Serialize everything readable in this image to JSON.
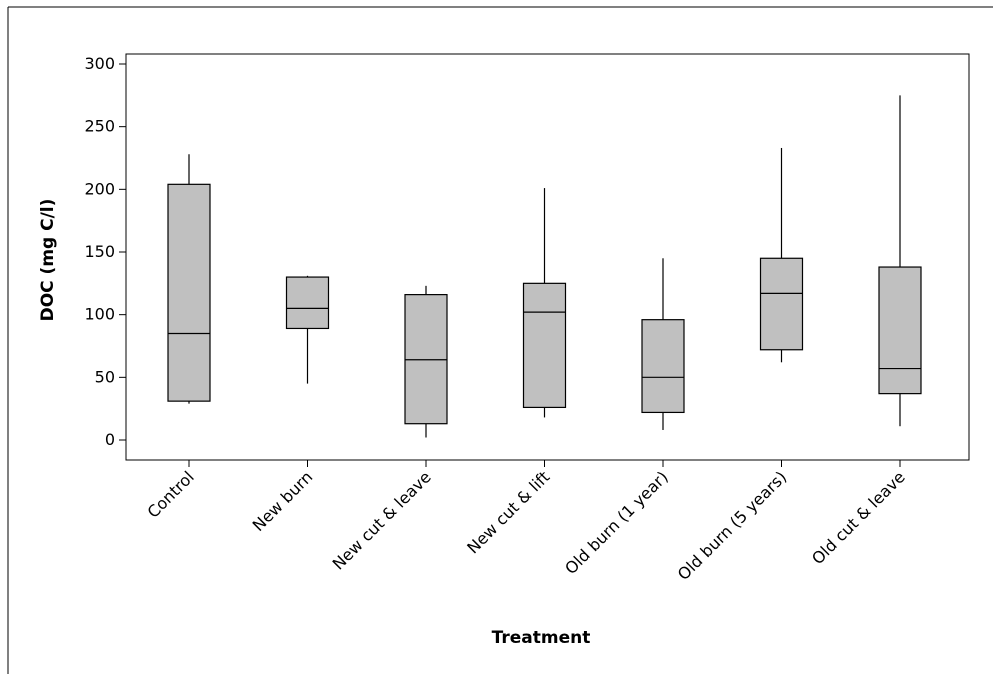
{
  "chart_data": {
    "type": "box",
    "title": "",
    "xlabel": "Treatment",
    "ylabel": "DOC (mg C/l)",
    "ylim": [
      -15,
      305
    ],
    "yticks": [
      0,
      50,
      100,
      150,
      200,
      250,
      300
    ],
    "grid": false,
    "legend": "none",
    "box_color": "#c0c0c0",
    "line_color": "#000000",
    "categories": [
      "Control",
      "New burn",
      "New cut & leave",
      "New cut & lift",
      "Old burn (1 year)",
      "Old burn (5 years)",
      "Old cut & leave"
    ],
    "boxes": [
      {
        "category": "Control",
        "min": 29,
        "q1": 31,
        "median": 85,
        "q3": 204,
        "max": 228
      },
      {
        "category": "New burn",
        "min": 45,
        "q1": 89,
        "median": 105,
        "q3": 130,
        "max": 131
      },
      {
        "category": "New cut & leave",
        "min": 2,
        "q1": 13,
        "median": 64,
        "q3": 116,
        "max": 123
      },
      {
        "category": "New cut & lift",
        "min": 18,
        "q1": 26,
        "median": 102,
        "q3": 125,
        "max": 201
      },
      {
        "category": "Old burn (1 year)",
        "min": 8,
        "q1": 22,
        "median": 50,
        "q3": 96,
        "max": 145
      },
      {
        "category": "Old burn (5 years)",
        "min": 62,
        "q1": 72,
        "median": 117,
        "q3": 145,
        "max": 233
      },
      {
        "category": "Old cut & leave",
        "min": 11,
        "q1": 37,
        "median": 57,
        "q3": 138,
        "max": 275
      }
    ]
  }
}
